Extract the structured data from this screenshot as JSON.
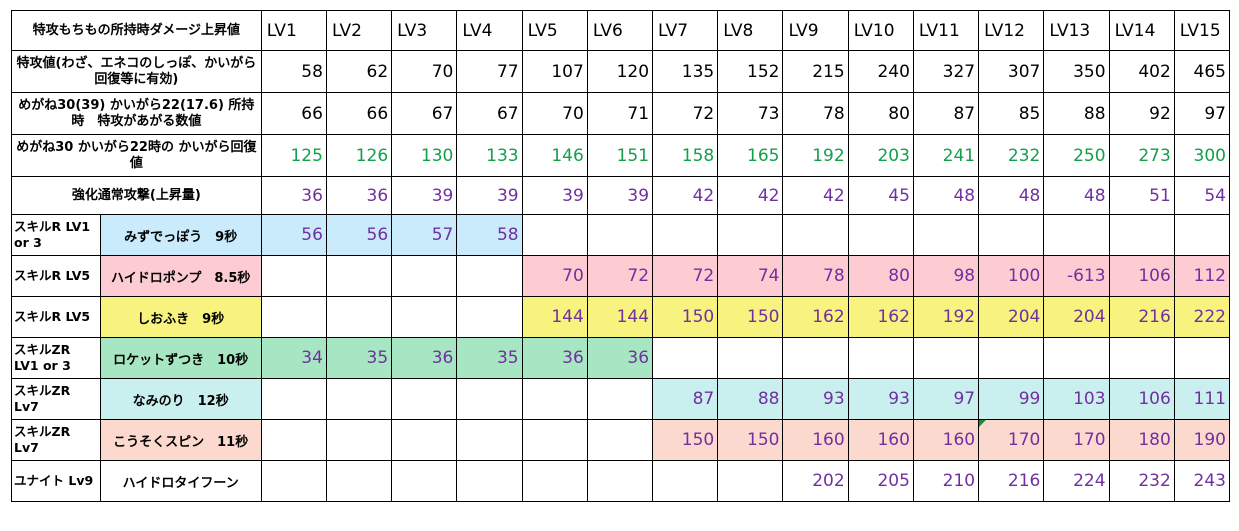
{
  "header": {
    "title": "特攻もちもの所持時ダメージ上昇値",
    "levels": [
      "LV1",
      "LV2",
      "LV3",
      "LV4",
      "LV5",
      "LV6",
      "LV7",
      "LV8",
      "LV9",
      "LV10",
      "LV11",
      "LV12",
      "LV13",
      "LV14",
      "LV15"
    ]
  },
  "stat_rows": [
    {
      "label": "特攻値(わざ、エネコのしっぽ、かいがら回復等に有効)",
      "values": [
        "58",
        "62",
        "70",
        "77",
        "107",
        "120",
        "135",
        "152",
        "215",
        "240",
        "327",
        "307",
        "350",
        "402",
        "465"
      ],
      "color": "#000000",
      "row_class": "r-norm",
      "text_class": "txt-black"
    },
    {
      "label": "めがね30(39) かいがら22(17.6) 所持時　特攻があがる数値",
      "values": [
        "66",
        "66",
        "67",
        "67",
        "70",
        "71",
        "72",
        "73",
        "78",
        "80",
        "87",
        "85",
        "88",
        "92",
        "97"
      ],
      "color": "#000000",
      "row_class": "r-norm",
      "text_class": "txt-black"
    },
    {
      "label": "めがね30 かいがら22時の かいがら回復値",
      "values": [
        "125",
        "126",
        "130",
        "133",
        "146",
        "151",
        "158",
        "165",
        "192",
        "203",
        "241",
        "232",
        "250",
        "273",
        "300"
      ],
      "color": "#12a04a",
      "row_class": "r-norm",
      "text_class": "txt-green"
    },
    {
      "label": "強化通常攻撃(上昇量)",
      "values": [
        "36",
        "36",
        "39",
        "39",
        "39",
        "39",
        "42",
        "42",
        "42",
        "45",
        "48",
        "48",
        "48",
        "51",
        "54"
      ],
      "color": "#7030a0",
      "row_class": "r-atk",
      "text_class": "txt-purple"
    }
  ],
  "skill_rows": [
    {
      "prefix": "スキルR LV1 or 3",
      "name": "みずでっぽう　9秒",
      "color": "#c9ebfb",
      "bg_class": "bg-blue",
      "start": 0,
      "values": [
        "56",
        "56",
        "57",
        "58"
      ]
    },
    {
      "prefix": "スキルR LV5",
      "name": "ハイドロポンプ　8.5秒",
      "color": "#fcccd2",
      "bg_class": "bg-pink",
      "start": 4,
      "values": [
        "70",
        "72",
        "72",
        "74",
        "78",
        "80",
        "98",
        "100",
        "-613",
        "106",
        "112"
      ]
    },
    {
      "prefix": "スキルR LV5",
      "name": "しおふき　9秒",
      "color": "#f8f27e",
      "bg_class": "bg-yellow",
      "start": 4,
      "values": [
        "144",
        "144",
        "150",
        "150",
        "162",
        "162",
        "192",
        "204",
        "204",
        "216",
        "222"
      ]
    },
    {
      "prefix": "スキルZR LV1 or 3",
      "name": "ロケットずつき　10秒",
      "color": "#a7e6c2",
      "bg_class": "bg-green",
      "start": 0,
      "values": [
        "34",
        "35",
        "36",
        "35",
        "36",
        "36"
      ]
    },
    {
      "prefix": "スキルZR Lv7",
      "name": "なみのり　12秒",
      "color": "#c9f0ee",
      "bg_class": "bg-cyan",
      "start": 6,
      "values": [
        "87",
        "88",
        "93",
        "93",
        "97",
        "99",
        "103",
        "106",
        "111"
      ]
    },
    {
      "prefix": "スキルZR Lv7",
      "name": "こうそくスピン　11秒",
      "color": "#fcd9cf",
      "bg_class": "bg-peach",
      "start": 6,
      "values": [
        "150",
        "150",
        "160",
        "160",
        "160",
        "170",
        "170",
        "180",
        "190"
      ]
    },
    {
      "prefix": "ユナイト Lv9",
      "name": "ハイドロタイフーン",
      "color": "#ffffff",
      "bg_class": "bg-white",
      "start": 8,
      "values": [
        "202",
        "205",
        "210",
        "216",
        "224",
        "232",
        "243"
      ]
    }
  ]
}
